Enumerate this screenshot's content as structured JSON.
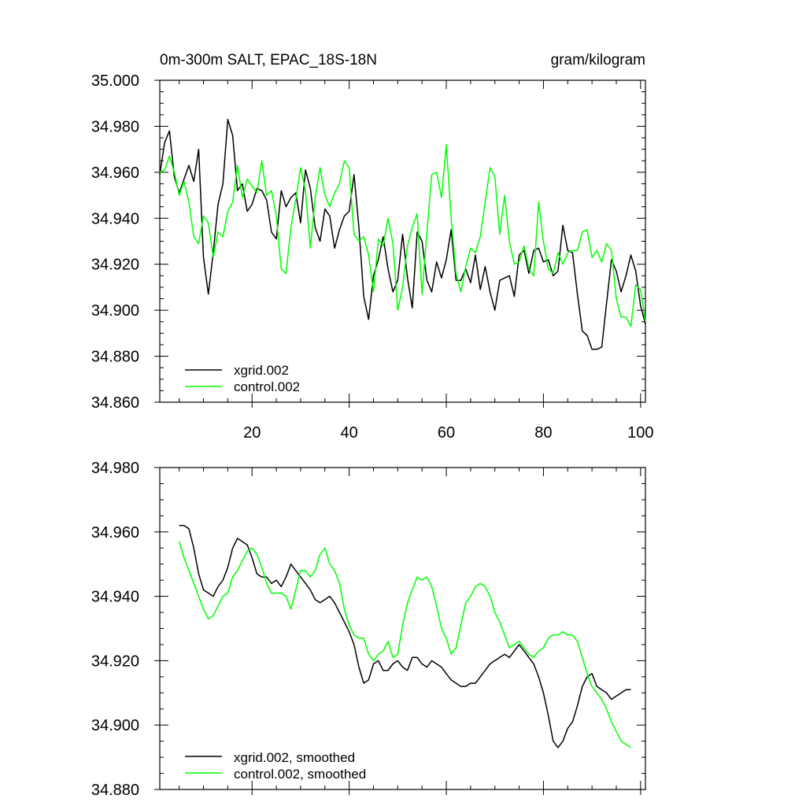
{
  "chart_data": [
    {
      "type": "line",
      "title_left": "0m-300m SALT, EPAC_18S-18N",
      "title_right": "gram/kilogram",
      "xlabel": "",
      "ylabel": "",
      "xlim": [
        1,
        101
      ],
      "ylim": [
        34.86,
        35.0
      ],
      "x_ticks": [
        20,
        40,
        60,
        80,
        100
      ],
      "y_ticks": [
        "34.860",
        "34.880",
        "34.900",
        "34.920",
        "34.940",
        "34.960",
        "34.980",
        "35.000"
      ],
      "legend_position": "bottom-left",
      "x": [
        1,
        2,
        3,
        4,
        5,
        6,
        7,
        8,
        9,
        10,
        11,
        12,
        13,
        14,
        15,
        16,
        17,
        18,
        19,
        20,
        21,
        22,
        23,
        24,
        25,
        26,
        27,
        28,
        29,
        30,
        31,
        32,
        33,
        34,
        35,
        36,
        37,
        38,
        39,
        40,
        41,
        42,
        43,
        44,
        45,
        46,
        47,
        48,
        49,
        50,
        51,
        52,
        53,
        54,
        55,
        56,
        57,
        58,
        59,
        60,
        61,
        62,
        63,
        64,
        65,
        66,
        67,
        68,
        69,
        70,
        71,
        72,
        73,
        74,
        75,
        76,
        77,
        78,
        79,
        80,
        81,
        82,
        83,
        84,
        85,
        86,
        87,
        88,
        89,
        90,
        91,
        92,
        93,
        94,
        95,
        96,
        97,
        98,
        99,
        100,
        101
      ],
      "series": [
        {
          "name": "xgrid.002",
          "color": "#000000",
          "values": [
            34.959,
            34.973,
            34.978,
            34.958,
            34.951,
            34.957,
            34.963,
            34.956,
            34.97,
            34.923,
            34.907,
            34.925,
            34.946,
            34.955,
            34.983,
            34.976,
            34.952,
            34.955,
            34.943,
            34.946,
            34.953,
            34.952,
            34.948,
            34.934,
            34.931,
            34.952,
            34.945,
            34.949,
            34.951,
            34.938,
            34.961,
            34.953,
            34.936,
            34.93,
            34.944,
            34.941,
            34.927,
            34.935,
            34.941,
            34.943,
            34.959,
            34.936,
            34.906,
            34.896,
            34.915,
            34.922,
            34.932,
            34.918,
            34.908,
            34.913,
            34.933,
            34.914,
            34.901,
            34.934,
            34.93,
            34.913,
            34.908,
            34.921,
            34.914,
            34.922,
            34.935,
            34.913,
            34.913,
            34.918,
            34.912,
            34.924,
            34.909,
            34.919,
            34.908,
            34.9,
            34.913,
            34.914,
            34.915,
            34.906,
            34.924,
            34.926,
            34.916,
            34.926,
            34.927,
            34.921,
            34.922,
            34.915,
            34.917,
            34.937,
            34.926,
            34.925,
            34.907,
            34.891,
            34.889,
            34.883,
            34.883,
            34.884,
            34.903,
            34.922,
            34.917,
            34.908,
            34.915,
            34.924,
            34.917,
            34.902,
            34.894
          ]
        },
        {
          "name": "control.002",
          "color": "#00ff00",
          "values": [
            34.96,
            34.961,
            34.967,
            34.96,
            34.95,
            34.956,
            34.947,
            34.932,
            34.929,
            34.941,
            34.938,
            34.923,
            34.934,
            34.932,
            34.943,
            34.947,
            34.963,
            34.949,
            34.957,
            34.954,
            34.951,
            34.965,
            34.95,
            34.952,
            34.941,
            34.918,
            34.916,
            34.936,
            34.948,
            34.962,
            34.952,
            34.927,
            34.949,
            34.962,
            34.95,
            34.945,
            34.951,
            34.955,
            34.965,
            34.962,
            34.933,
            34.93,
            34.932,
            34.924,
            34.908,
            34.931,
            34.928,
            34.94,
            34.929,
            34.9,
            34.91,
            34.928,
            34.936,
            34.942,
            34.907,
            34.934,
            34.959,
            34.96,
            34.949,
            34.972,
            34.94,
            34.916,
            34.908,
            34.919,
            34.927,
            34.925,
            34.932,
            34.947,
            34.962,
            34.958,
            34.933,
            34.95,
            34.93,
            34.92,
            34.921,
            34.928,
            34.918,
            34.915,
            34.947,
            34.93,
            34.918,
            34.916,
            34.925,
            34.92,
            34.925,
            34.926,
            34.926,
            34.934,
            34.935,
            34.923,
            34.926,
            34.921,
            34.929,
            34.926,
            34.905,
            34.897,
            34.897,
            34.893,
            34.911,
            34.909,
            34.895
          ]
        }
      ]
    },
    {
      "type": "line",
      "xlabel": "",
      "ylabel": "",
      "xlim": [
        1,
        101
      ],
      "ylim": [
        34.88,
        34.98
      ],
      "y_ticks": [
        "34.880",
        "34.900",
        "34.920",
        "34.940",
        "34.960",
        "34.980"
      ],
      "legend_position": "bottom-left",
      "x": [
        5,
        6,
        7,
        8,
        9,
        10,
        11,
        12,
        13,
        14,
        15,
        16,
        17,
        18,
        19,
        20,
        21,
        22,
        23,
        24,
        25,
        26,
        27,
        28,
        29,
        30,
        31,
        32,
        33,
        34,
        35,
        36,
        37,
        38,
        39,
        40,
        41,
        42,
        43,
        44,
        45,
        46,
        47,
        48,
        49,
        50,
        51,
        52,
        53,
        54,
        55,
        56,
        57,
        58,
        59,
        60,
        61,
        62,
        63,
        64,
        65,
        66,
        67,
        68,
        69,
        70,
        71,
        72,
        73,
        74,
        75,
        76,
        77,
        78,
        79,
        80,
        81,
        82,
        83,
        84,
        85,
        86,
        87,
        88,
        89,
        90,
        91,
        92,
        93,
        94,
        95,
        96,
        97,
        98
      ],
      "series": [
        {
          "name": "xgrid.002, smoothed",
          "color": "#000000",
          "values": [
            34.962,
            34.962,
            34.961,
            34.955,
            34.947,
            34.942,
            34.941,
            34.94,
            34.943,
            34.945,
            34.949,
            34.955,
            34.958,
            34.957,
            34.956,
            34.952,
            34.947,
            34.946,
            34.946,
            34.944,
            34.945,
            34.943,
            34.946,
            34.95,
            34.948,
            34.946,
            34.944,
            34.942,
            34.939,
            34.938,
            34.939,
            34.94,
            34.938,
            34.935,
            34.932,
            34.929,
            34.925,
            34.918,
            34.913,
            34.914,
            34.919,
            34.92,
            34.917,
            34.917,
            34.919,
            34.92,
            34.918,
            34.917,
            34.921,
            34.921,
            34.919,
            34.918,
            34.92,
            34.919,
            34.918,
            34.916,
            34.914,
            34.913,
            34.912,
            34.912,
            34.913,
            34.913,
            34.915,
            34.917,
            34.919,
            34.92,
            34.921,
            34.922,
            34.921,
            34.923,
            34.925,
            34.923,
            34.921,
            34.919,
            34.915,
            34.91,
            34.903,
            34.895,
            34.893,
            34.895,
            34.899,
            34.901,
            34.906,
            34.912,
            34.915,
            34.916,
            34.912,
            34.911,
            34.91,
            34.908,
            34.909,
            34.91,
            34.911,
            34.911
          ]
        },
        {
          "name": "control.002, smoothed",
          "color": "#00ff00",
          "values": [
            34.957,
            34.952,
            34.948,
            34.944,
            34.94,
            34.936,
            34.933,
            34.934,
            34.937,
            34.94,
            34.941,
            34.946,
            34.948,
            34.951,
            34.954,
            34.955,
            34.953,
            34.949,
            34.944,
            34.941,
            34.941,
            34.941,
            34.94,
            34.936,
            34.942,
            34.948,
            34.948,
            34.946,
            34.948,
            34.953,
            34.955,
            34.95,
            34.948,
            34.944,
            34.936,
            34.931,
            34.928,
            34.927,
            34.927,
            34.922,
            34.92,
            34.922,
            34.923,
            34.926,
            34.921,
            34.922,
            34.931,
            34.938,
            34.942,
            34.946,
            34.945,
            34.946,
            34.943,
            34.937,
            34.93,
            34.927,
            34.922,
            34.924,
            34.931,
            34.938,
            34.94,
            34.943,
            34.944,
            34.943,
            34.94,
            34.935,
            34.932,
            34.928,
            34.924,
            34.925,
            34.926,
            34.924,
            34.922,
            34.921,
            34.923,
            34.924,
            34.927,
            34.928,
            34.928,
            34.929,
            34.928,
            34.928,
            34.926,
            34.921,
            34.916,
            34.912,
            34.91,
            34.908,
            34.905,
            34.901,
            34.898,
            34.895,
            34.894,
            34.893
          ]
        }
      ]
    }
  ]
}
